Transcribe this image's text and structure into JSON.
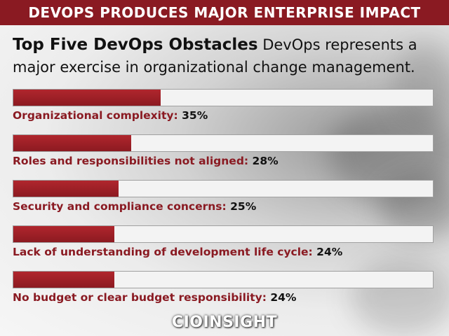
{
  "header": {
    "title": "DEVOPS PRODUCES MAJOR ENTERPRISE IMPACT"
  },
  "intro": {
    "title": "Top Five DevOps Obstacles",
    "text": "DevOps represents a major exercise in organizational change management."
  },
  "chart_data": {
    "type": "bar",
    "orientation": "horizontal",
    "unit": "%",
    "xlim": [
      0,
      100
    ],
    "categories": [
      "Organizational complexity:",
      "Roles and responsibilities not aligned:",
      "Security and compliance concerns:",
      "Lack of understanding of development life cycle:",
      "No budget or clear budget responsibility:"
    ],
    "values": [
      35,
      28,
      25,
      24,
      24
    ],
    "value_labels": [
      "35%",
      "28%",
      "25%",
      "24%",
      "24%"
    ],
    "bar_color": "#9c1f27",
    "track_color": "#f3f3f3"
  },
  "footer": {
    "logo_left": "CIO",
    "logo_right": "INSIGHT"
  },
  "colors": {
    "accent": "#8a1a22"
  }
}
